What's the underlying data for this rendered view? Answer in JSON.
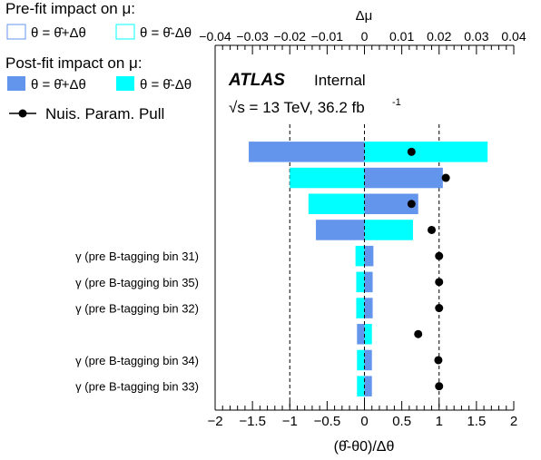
{
  "legend": {
    "prefit_title": "Pre-fit impact on  μ:",
    "prefit_up": "θ = θ̂+Δθ",
    "prefit_down": "θ = θ̂-Δθ",
    "postfit_title": "Post-fit impact on  μ:",
    "postfit_up": "θ = θ̂+Δθ",
    "postfit_down": "θ = θ̂-Δθ",
    "pull_label": "Nuis. Param. Pull"
  },
  "atlas": {
    "label": "ATLAS",
    "status": "Internal",
    "energy": "√s = 13 TeV, 36.2 fb",
    "lumi_exp": "-1"
  },
  "colors": {
    "postfit_up": "#6495ed",
    "postfit_down": "#00ffff",
    "prefit_up_outline": "#6495ed",
    "prefit_down_outline": "#00ffff",
    "pull": "#000000"
  },
  "chart_data": {
    "type": "bar",
    "orientation": "horizontal",
    "xlabel": "(θ̂-θ0)/Δθ",
    "top_axis_label": "Δμ",
    "xlim": [
      -2,
      2
    ],
    "top_xlim": [
      -0.04,
      0.04
    ],
    "x_ticks": [
      "−2",
      "−1.5",
      "−1",
      "−0.5",
      "0",
      "0.5",
      "1",
      "1.5",
      "2"
    ],
    "top_ticks": [
      "−0.04",
      "−0.03",
      "−0.02",
      "−0.01",
      "0",
      "0.01",
      "0.02",
      "0.03",
      "0.04"
    ],
    "reference_lines": [
      -1,
      1
    ],
    "rows": [
      {
        "label": "",
        "up": -1.55,
        "down": 1.65,
        "pull": 0.63
      },
      {
        "label": "",
        "up": 1.05,
        "down": -1.0,
        "pull": 1.09
      },
      {
        "label": "",
        "up": 0.72,
        "down": -0.75,
        "pull": 0.63
      },
      {
        "label": "",
        "up": -0.65,
        "down": 0.65,
        "pull": 0.9
      },
      {
        "label": "γ (pre B-tagging bin 31)",
        "up": 0.12,
        "down": -0.12,
        "pull": 1.0
      },
      {
        "label": "γ (pre B-tagging bin 35)",
        "up": 0.11,
        "down": -0.11,
        "pull": 1.0
      },
      {
        "label": "γ (pre B-tagging bin 32)",
        "up": 0.11,
        "down": -0.11,
        "pull": 1.0
      },
      {
        "label": "",
        "up": -0.1,
        "down": 0.1,
        "pull": 0.72
      },
      {
        "label": "γ (pre B-tagging bin 34)",
        "up": 0.1,
        "down": -0.1,
        "pull": 0.99
      },
      {
        "label": "γ (pre B-tagging bin 33)",
        "up": 0.1,
        "down": -0.1,
        "pull": 1.0
      }
    ]
  }
}
